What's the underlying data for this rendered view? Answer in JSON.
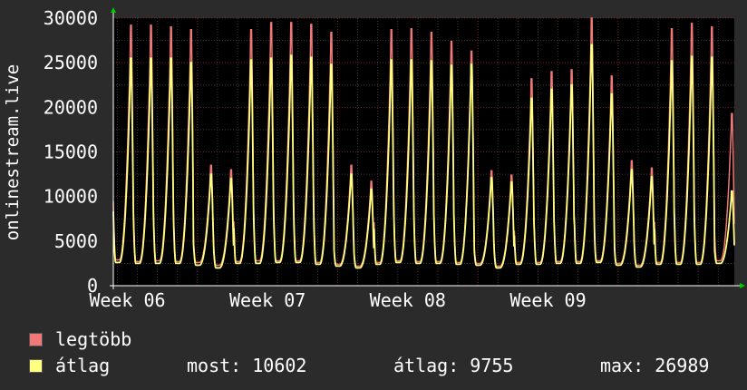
{
  "chart_data": {
    "type": "line",
    "ylabel": "onlinestream.live",
    "ylim": [
      0,
      30000
    ],
    "y_ticks": [
      "0",
      "5000",
      "10000",
      "15000",
      "20000",
      "25000",
      "30000"
    ],
    "x_ticks": [
      "Week 06",
      "Week 07",
      "Week 08",
      "Week 09"
    ],
    "grid": true,
    "legend_position": "bottom",
    "colors": {
      "background": "#2b2b2b",
      "plot_bg": "#000000",
      "grid_major": "#7a1e1e",
      "grid_minor": "#3a3a3a",
      "axis": "#ffffff"
    },
    "series": [
      {
        "name": "legtöbb",
        "color": "#f07878",
        "daily_peaks": [
          29200,
          29200,
          29000,
          28700,
          13500,
          13000,
          28700,
          29500,
          29500,
          29300,
          28400,
          13500,
          11700,
          28700,
          28800,
          28400,
          27400,
          26300,
          12900,
          12400,
          23200,
          24000,
          24200,
          30000,
          23500,
          14000,
          13200,
          28800,
          29400,
          29000,
          19300
        ],
        "daily_lows": [
          2900,
          2700,
          2800,
          2700,
          2600,
          2300,
          2700,
          2800,
          2800,
          2800,
          2600,
          2400,
          2200,
          2600,
          2800,
          2700,
          2700,
          2600,
          2500,
          2200,
          2600,
          2600,
          2700,
          2700,
          2800,
          2500,
          2300,
          2600,
          2600,
          2600,
          2800
        ]
      },
      {
        "name": "átlag",
        "color": "#ffff80",
        "daily_peaks": [
          25500,
          25500,
          25500,
          25000,
          12500,
          12000,
          25300,
          25500,
          25800,
          25600,
          24800,
          12500,
          10800,
          25300,
          25300,
          25200,
          24700,
          24800,
          12100,
          11600,
          21000,
          22000,
          22500,
          27000,
          21500,
          13000,
          12200,
          25200,
          25700,
          25600,
          10600
        ],
        "daily_lows": [
          2600,
          2500,
          2500,
          2500,
          2300,
          2000,
          2500,
          2500,
          2600,
          2600,
          2400,
          2200,
          2000,
          2400,
          2600,
          2500,
          2500,
          2400,
          2300,
          2000,
          2400,
          2400,
          2500,
          2500,
          2600,
          2300,
          2100,
          2400,
          2400,
          2400,
          2500
        ]
      }
    ]
  },
  "legend": {
    "max_label": "legtöbb",
    "avg_label": "átlag",
    "stat_now": "most: 10602",
    "stat_avg": "átlag: 9755",
    "stat_max": "max: 26989"
  }
}
